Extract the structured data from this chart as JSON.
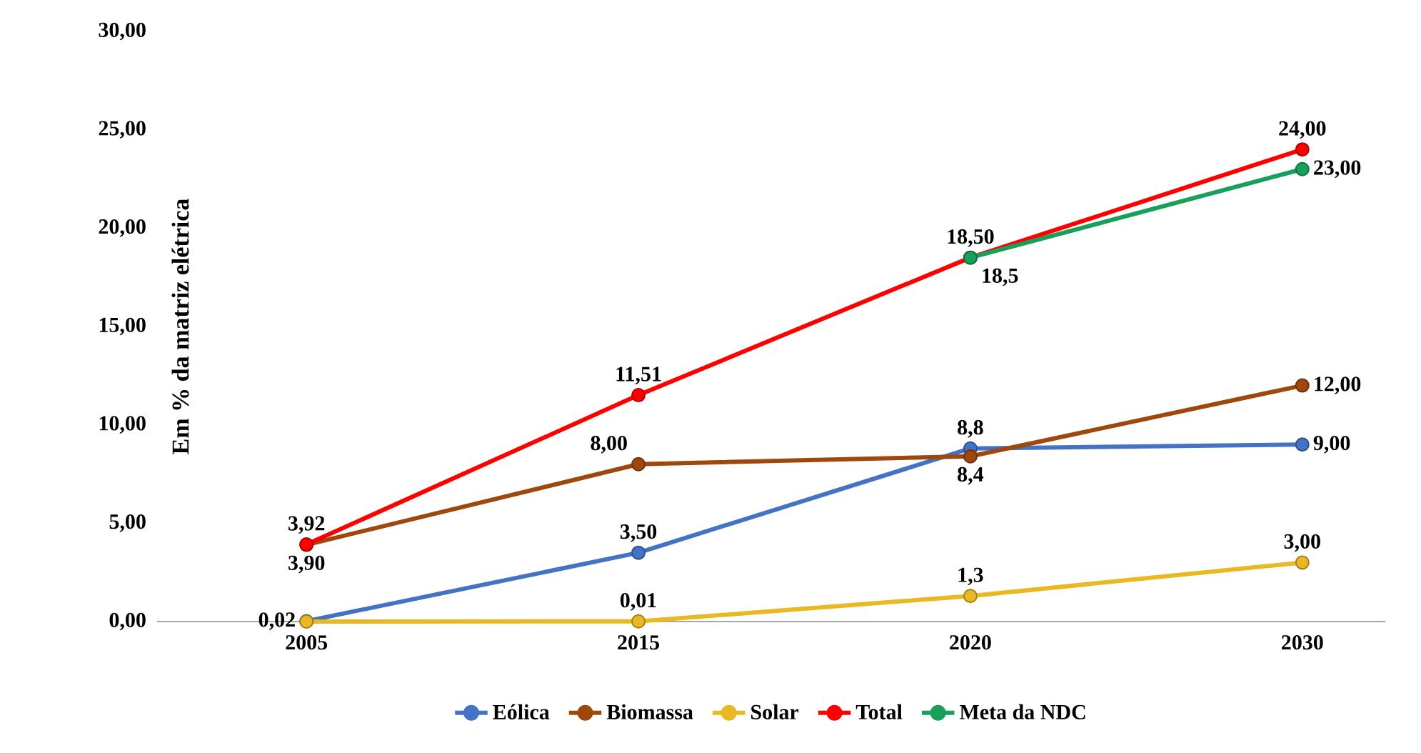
{
  "chart_data": {
    "type": "line",
    "ylabel": "Em % da matriz elétrica",
    "categories": [
      "2005",
      "2015",
      "2020",
      "2030"
    ],
    "ylim": [
      0,
      30
    ],
    "yticks": [
      {
        "value": 0,
        "label": "0,00"
      },
      {
        "value": 5,
        "label": "5,00"
      },
      {
        "value": 10,
        "label": "10,00"
      },
      {
        "value": 15,
        "label": "15,00"
      },
      {
        "value": 20,
        "label": "20,00"
      },
      {
        "value": 25,
        "label": "25,00"
      },
      {
        "value": 30,
        "label": "30,00"
      }
    ],
    "grid": false,
    "legend": "bottom",
    "marker": "circle",
    "line_style": "solid",
    "series": [
      {
        "name": "Eólica",
        "color": "#4472c4",
        "values": [
          0.02,
          3.5,
          8.8,
          9.0
        ],
        "value_labels": [
          "0,02",
          "3,50",
          "8,8",
          "9,00"
        ]
      },
      {
        "name": "Biomassa",
        "color": "#9e480e",
        "values": [
          3.9,
          8.0,
          8.4,
          12.0
        ],
        "value_labels": [
          "3,90",
          "8,00",
          "8,4",
          "12,00"
        ]
      },
      {
        "name": "Solar",
        "color": "#e8b923",
        "values": [
          0.0,
          0.01,
          1.3,
          3.0
        ],
        "value_labels": [
          null,
          "0,01",
          "1,3",
          "3,00"
        ]
      },
      {
        "name": "Total",
        "color": "#ff0000",
        "values": [
          3.92,
          11.51,
          18.5,
          24.0
        ],
        "value_labels": [
          "3,92",
          "11,51",
          "18,50",
          "24,00"
        ]
      },
      {
        "name": "Meta da NDC",
        "color": "#18a05a",
        "values": [
          null,
          null,
          18.5,
          23.0
        ],
        "value_labels": [
          null,
          null,
          "18,5",
          "23,00"
        ]
      }
    ]
  }
}
